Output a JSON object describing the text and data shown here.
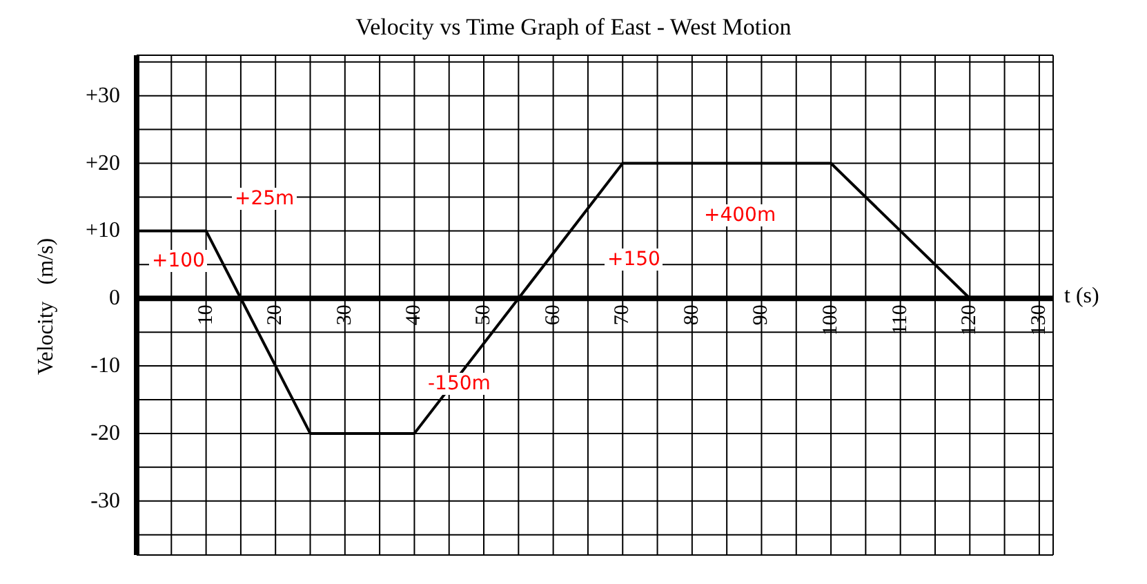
{
  "chart_data": {
    "type": "line",
    "title": "Velocity vs Time Graph of East - West  Motion",
    "xlabel": "t (s)",
    "ylabel": "Velocity   (m/s)",
    "x": [
      0,
      10,
      15,
      25,
      40,
      55,
      70,
      100,
      120
    ],
    "series": [
      {
        "color": "#000000",
        "values": [
          10,
          10,
          0,
          -20,
          -20,
          0,
          20,
          20,
          0
        ]
      }
    ],
    "xlim": [
      0,
      132
    ],
    "xticks": [
      {
        "value": 5,
        "label": null
      },
      10,
      {
        "value": 15,
        "label": null
      },
      20,
      {
        "value": 25,
        "label": null
      },
      30,
      {
        "value": 35,
        "label": null
      },
      40,
      {
        "value": 45,
        "label": null
      },
      50,
      {
        "value": 55,
        "label": null
      },
      60,
      {
        "value": 65,
        "label": null
      },
      70,
      {
        "value": 75,
        "label": null
      },
      80,
      {
        "value": 85,
        "label": null
      },
      90,
      {
        "value": 95,
        "label": null
      },
      100,
      {
        "value": 105,
        "label": null
      },
      110,
      {
        "value": 115,
        "label": null
      },
      120,
      {
        "value": 125,
        "label": null
      },
      130
    ],
    "ylim": [
      -38,
      36
    ],
    "yticks": [
      {
        "value": -35,
        "label": null
      },
      -30,
      {
        "value": -25,
        "label": null
      },
      -20,
      {
        "value": -15,
        "label": null
      },
      -10,
      {
        "value": -5,
        "label": null
      },
      0,
      {
        "value": 5,
        "label": null
      },
      {
        "value": 10,
        "label": "+10"
      },
      {
        "value": 15,
        "label": null
      },
      {
        "value": 20,
        "label": "+20"
      },
      {
        "value": 25,
        "label": null
      },
      {
        "value": 30,
        "label": "+30"
      },
      {
        "value": 35,
        "label": null
      }
    ],
    "grid": true,
    "legend": false,
    "marker": "none",
    "line_style": "solid",
    "annotations": [
      "+100",
      "+25m",
      "-150m",
      "+150",
      "+400m"
    ]
  }
}
